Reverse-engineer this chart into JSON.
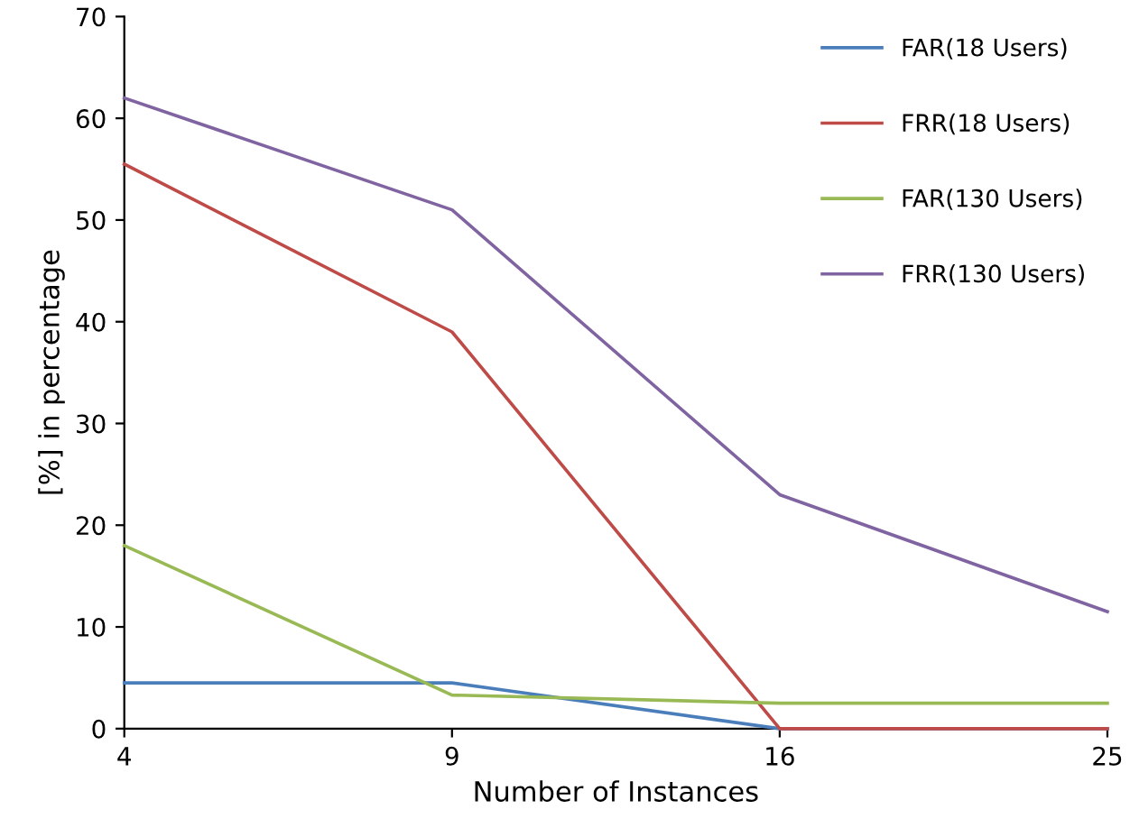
{
  "chart_data": {
    "type": "line",
    "xlabel": "Number of Instances",
    "ylabel": "[%] in percentage",
    "categories": [
      "4",
      "9",
      "16",
      "25"
    ],
    "series": [
      {
        "name": "FAR(18 Users)",
        "color": "#4a7ebb",
        "values": [
          4.5,
          4.5,
          0,
          0
        ]
      },
      {
        "name": "FRR(18 Users)",
        "color": "#be4b48",
        "values": [
          55.5,
          39,
          0,
          0
        ]
      },
      {
        "name": "FAR(130 Users)",
        "color": "#98b954",
        "values": [
          18,
          3.3,
          2.5,
          2.5
        ]
      },
      {
        "name": "FRR(130 Users)",
        "color": "#8064a2",
        "values": [
          62,
          51,
          23,
          11.5
        ]
      }
    ],
    "ylim": [
      0,
      70
    ],
    "yticks": [
      0,
      10,
      20,
      30,
      40,
      50,
      60,
      70
    ],
    "grid": false,
    "legend": "top right",
    "marker": "none",
    "line_style": "solid"
  }
}
